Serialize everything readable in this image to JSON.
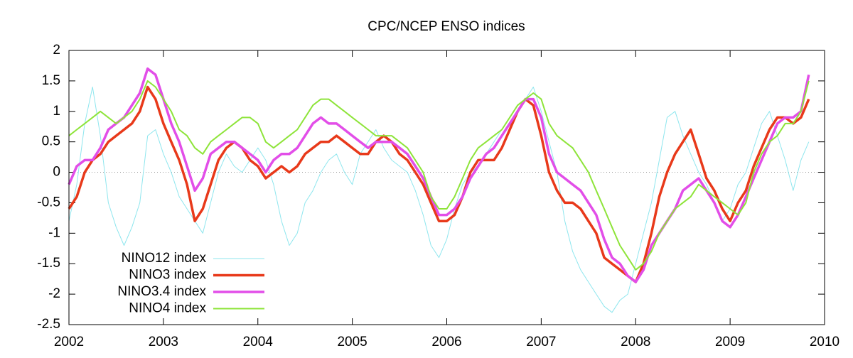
{
  "chart_data": {
    "type": "line",
    "title": "CPC/NCEP ENSO indices",
    "x": [
      2002,
      2002.083,
      2002.167,
      2002.25,
      2002.333,
      2002.417,
      2002.5,
      2002.583,
      2002.667,
      2002.75,
      2002.833,
      2002.917,
      2003,
      2003.083,
      2003.167,
      2003.25,
      2003.333,
      2003.417,
      2003.5,
      2003.583,
      2003.667,
      2003.75,
      2003.833,
      2003.917,
      2004,
      2004.083,
      2004.167,
      2004.25,
      2004.333,
      2004.417,
      2004.5,
      2004.583,
      2004.667,
      2004.75,
      2004.833,
      2004.917,
      2005,
      2005.083,
      2005.167,
      2005.25,
      2005.333,
      2005.417,
      2005.5,
      2005.583,
      2005.667,
      2005.75,
      2005.833,
      2005.917,
      2006,
      2006.083,
      2006.167,
      2006.25,
      2006.333,
      2006.417,
      2006.5,
      2006.583,
      2006.667,
      2006.75,
      2006.833,
      2006.917,
      2007,
      2007.083,
      2007.167,
      2007.25,
      2007.333,
      2007.417,
      2007.5,
      2007.583,
      2007.667,
      2007.75,
      2007.833,
      2007.917,
      2008,
      2008.083,
      2008.167,
      2008.25,
      2008.333,
      2008.417,
      2008.5,
      2008.583,
      2008.667,
      2008.75,
      2008.833,
      2008.917,
      2009,
      2009.083,
      2009.167,
      2009.25,
      2009.333,
      2009.417,
      2009.5,
      2009.583,
      2009.667,
      2009.75,
      2009.833
    ],
    "series": [
      {
        "name": "NINO12 index",
        "color": "#8ee6ee",
        "line_width": 1,
        "values": [
          -0.8,
          -0.2,
          0.8,
          1.4,
          0.6,
          -0.5,
          -0.9,
          -1.2,
          -0.9,
          -0.5,
          0.6,
          0.7,
          0.3,
          0.0,
          -0.4,
          -0.6,
          -0.8,
          -1.0,
          -0.5,
          0.0,
          0.3,
          0.1,
          0.0,
          0.2,
          0.4,
          0.2,
          -0.2,
          -0.8,
          -1.2,
          -1.0,
          -0.5,
          -0.3,
          0.0,
          0.2,
          0.3,
          0.0,
          -0.2,
          0.3,
          0.5,
          0.7,
          0.4,
          0.2,
          0.1,
          0.0,
          -0.3,
          -0.7,
          -1.2,
          -1.4,
          -1.1,
          -0.6,
          -0.2,
          0.0,
          0.1,
          0.3,
          0.5,
          0.7,
          0.9,
          1.1,
          1.2,
          1.4,
          1.0,
          0.5,
          0.0,
          -0.8,
          -1.3,
          -1.6,
          -1.8,
          -2.0,
          -2.2,
          -2.3,
          -2.1,
          -2.0,
          -1.5,
          -1.0,
          -0.5,
          0.2,
          0.9,
          1.0,
          0.6,
          0.3,
          0.0,
          -0.2,
          -0.5,
          -0.8,
          -0.6,
          -0.2,
          0.0,
          0.4,
          0.8,
          1.0,
          0.6,
          0.2,
          -0.3,
          0.2,
          0.5
        ]
      },
      {
        "name": "NINO3 index",
        "color": "#e8391a",
        "line_width": 3.5,
        "values": [
          -0.6,
          -0.4,
          0.0,
          0.2,
          0.3,
          0.5,
          0.6,
          0.7,
          0.8,
          1.0,
          1.4,
          1.2,
          0.8,
          0.5,
          0.2,
          -0.2,
          -0.8,
          -0.6,
          -0.2,
          0.2,
          0.4,
          0.5,
          0.4,
          0.2,
          0.1,
          -0.1,
          0.0,
          0.1,
          0.0,
          0.1,
          0.3,
          0.4,
          0.5,
          0.5,
          0.6,
          0.5,
          0.4,
          0.3,
          0.3,
          0.5,
          0.6,
          0.5,
          0.3,
          0.2,
          0.0,
          -0.2,
          -0.5,
          -0.8,
          -0.8,
          -0.7,
          -0.4,
          0.0,
          0.2,
          0.2,
          0.2,
          0.4,
          0.7,
          1.0,
          1.2,
          1.1,
          0.6,
          0.0,
          -0.3,
          -0.5,
          -0.5,
          -0.6,
          -0.8,
          -1.0,
          -1.4,
          -1.5,
          -1.6,
          -1.7,
          -1.8,
          -1.5,
          -1.0,
          -0.4,
          0.0,
          0.3,
          0.5,
          0.7,
          0.3,
          -0.1,
          -0.3,
          -0.6,
          -0.8,
          -0.5,
          -0.3,
          0.1,
          0.4,
          0.7,
          0.9,
          0.9,
          0.8,
          0.9,
          1.2
        ]
      },
      {
        "name": "NINO3.4 index",
        "color": "#e24ee8",
        "line_width": 3.5,
        "values": [
          -0.2,
          0.1,
          0.2,
          0.2,
          0.4,
          0.7,
          0.8,
          0.9,
          1.1,
          1.3,
          1.7,
          1.6,
          1.2,
          0.8,
          0.5,
          0.1,
          -0.3,
          -0.1,
          0.3,
          0.4,
          0.5,
          0.5,
          0.4,
          0.3,
          0.2,
          0.0,
          0.2,
          0.3,
          0.3,
          0.4,
          0.6,
          0.8,
          0.9,
          0.8,
          0.8,
          0.7,
          0.6,
          0.5,
          0.4,
          0.5,
          0.5,
          0.5,
          0.4,
          0.3,
          0.1,
          -0.1,
          -0.4,
          -0.7,
          -0.7,
          -0.6,
          -0.4,
          -0.1,
          0.1,
          0.3,
          0.4,
          0.6,
          0.8,
          1.0,
          1.2,
          1.2,
          0.9,
          0.3,
          0.0,
          -0.1,
          -0.2,
          -0.3,
          -0.5,
          -0.7,
          -1.1,
          -1.4,
          -1.5,
          -1.7,
          -1.8,
          -1.6,
          -1.2,
          -1.0,
          -0.8,
          -0.6,
          -0.3,
          -0.2,
          -0.1,
          -0.3,
          -0.5,
          -0.8,
          -0.9,
          -0.7,
          -0.4,
          -0.1,
          0.2,
          0.5,
          0.8,
          0.9,
          0.9,
          1.0,
          1.6
        ]
      },
      {
        "name": "NINO4 index",
        "color": "#8ee43a",
        "line_width": 2,
        "values": [
          0.6,
          0.7,
          0.8,
          0.9,
          1.0,
          0.9,
          0.8,
          0.9,
          1.0,
          1.2,
          1.5,
          1.4,
          1.2,
          1.0,
          0.7,
          0.6,
          0.4,
          0.3,
          0.5,
          0.6,
          0.7,
          0.8,
          0.9,
          0.9,
          0.8,
          0.5,
          0.4,
          0.5,
          0.6,
          0.7,
          0.9,
          1.1,
          1.2,
          1.2,
          1.1,
          1.0,
          0.9,
          0.8,
          0.7,
          0.6,
          0.6,
          0.6,
          0.5,
          0.4,
          0.2,
          0.0,
          -0.4,
          -0.6,
          -0.6,
          -0.4,
          -0.1,
          0.2,
          0.4,
          0.5,
          0.6,
          0.7,
          0.9,
          1.1,
          1.2,
          1.3,
          1.2,
          0.8,
          0.6,
          0.5,
          0.4,
          0.2,
          0.0,
          -0.3,
          -0.6,
          -0.9,
          -1.2,
          -1.4,
          -1.6,
          -1.5,
          -1.3,
          -1.0,
          -0.8,
          -0.6,
          -0.5,
          -0.4,
          -0.2,
          -0.3,
          -0.4,
          -0.5,
          -0.6,
          -0.7,
          -0.5,
          0.0,
          0.3,
          0.5,
          0.6,
          0.8,
          0.8,
          1.0,
          1.5
        ]
      }
    ],
    "xlim": [
      2002,
      2010
    ],
    "xticks": [
      2002,
      2003,
      2004,
      2005,
      2006,
      2007,
      2008,
      2009,
      2010
    ],
    "ylim": [
      -2.5,
      2
    ],
    "yticks": [
      -2.5,
      -2,
      -1.5,
      -1,
      -0.5,
      0,
      0.5,
      1,
      1.5,
      2
    ],
    "zero_line": true,
    "legend": "lower-left"
  }
}
